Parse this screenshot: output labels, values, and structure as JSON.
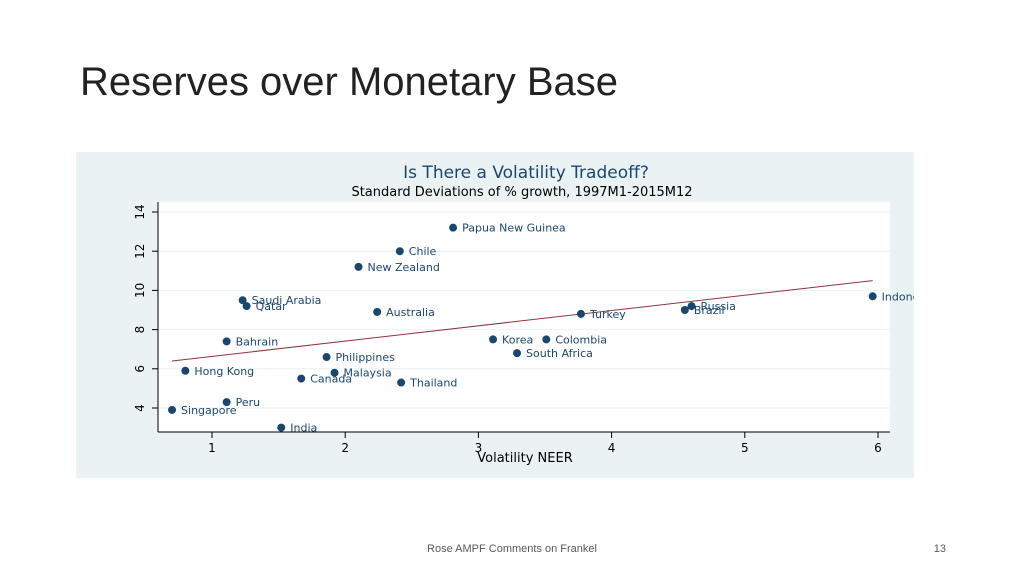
{
  "slide": {
    "title": "Reserves over Monetary Base",
    "footer": "Rose AMPF Comments on Frankel",
    "page_number": "13"
  },
  "chart_data": {
    "type": "scatter",
    "title": "Is There a Volatility Tradeoff?",
    "subtitle": "Standard Deviations of % growth, 1997M1-2015M12",
    "xlabel": "Volatility NEER",
    "ylabel": "",
    "xlim": [
      0.6,
      6.1
    ],
    "ylim": [
      2.7,
      14.3
    ],
    "xticks": [
      1,
      2,
      3,
      4,
      5,
      6
    ],
    "yticks": [
      4,
      6,
      8,
      10,
      12,
      14
    ],
    "grid": true,
    "colors": {
      "point": "#1a476f",
      "fit_line": "#90353b",
      "text": "#1a476f",
      "background": "#eaf2f3"
    },
    "points": [
      {
        "label": "Papua New Guinea",
        "x": 2.81,
        "y": 13.2
      },
      {
        "label": "Chile",
        "x": 2.41,
        "y": 12.0
      },
      {
        "label": "New Zealand",
        "x": 2.1,
        "y": 11.2
      },
      {
        "label": "Indonesia",
        "x": 5.96,
        "y": 9.7
      },
      {
        "label": "Saudi Arabia",
        "x": 1.23,
        "y": 9.5
      },
      {
        "label": "Qatar",
        "x": 1.26,
        "y": 9.2
      },
      {
        "label": "Russia",
        "x": 4.6,
        "y": 9.2
      },
      {
        "label": "Australia",
        "x": 2.24,
        "y": 8.9
      },
      {
        "label": "Brazil",
        "x": 4.55,
        "y": 9.0
      },
      {
        "label": "Turkey",
        "x": 3.77,
        "y": 8.8
      },
      {
        "label": "Korea",
        "x": 3.11,
        "y": 7.5
      },
      {
        "label": "Colombia",
        "x": 3.51,
        "y": 7.5
      },
      {
        "label": "Bahrain",
        "x": 1.11,
        "y": 7.4
      },
      {
        "label": "South Africa",
        "x": 3.29,
        "y": 6.8
      },
      {
        "label": "Philippines",
        "x": 1.86,
        "y": 6.6
      },
      {
        "label": "Hong Kong",
        "x": 0.8,
        "y": 5.9
      },
      {
        "label": "Malaysia",
        "x": 1.92,
        "y": 5.8
      },
      {
        "label": "Canada",
        "x": 1.67,
        "y": 5.5
      },
      {
        "label": "Thailand",
        "x": 2.42,
        "y": 5.3
      },
      {
        "label": "Peru",
        "x": 1.11,
        "y": 4.3
      },
      {
        "label": "Singapore",
        "x": 0.7,
        "y": 3.9
      },
      {
        "label": "India",
        "x": 1.52,
        "y": 3.0
      }
    ],
    "fit_line": {
      "x": [
        0.7,
        5.96
      ],
      "y": [
        6.4,
        10.5
      ]
    }
  }
}
